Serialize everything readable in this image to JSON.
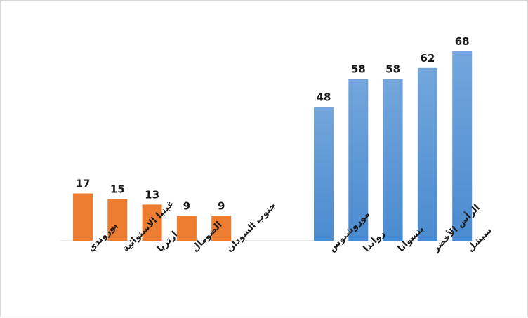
{
  "chart_data": {
    "type": "bar",
    "ylim": [
      0,
      68
    ],
    "grid": false,
    "legend": "none",
    "groups": [
      {
        "color": "#ed7d31",
        "categories": [
          "بوروندي",
          "غينيا الاستوائية",
          "ارتريا",
          "الصومال",
          "جنوب السودان"
        ],
        "values": [
          17,
          15,
          13,
          9,
          9
        ]
      },
      {
        "color_top": "#73a6dc",
        "color_bottom": "#4a8bd0",
        "categories": [
          "موروشيوس",
          "رواندا",
          "بتسوانا",
          "الرأس الأخضر",
          "سيشل"
        ],
        "values": [
          48,
          58,
          58,
          62,
          68
        ]
      }
    ]
  }
}
